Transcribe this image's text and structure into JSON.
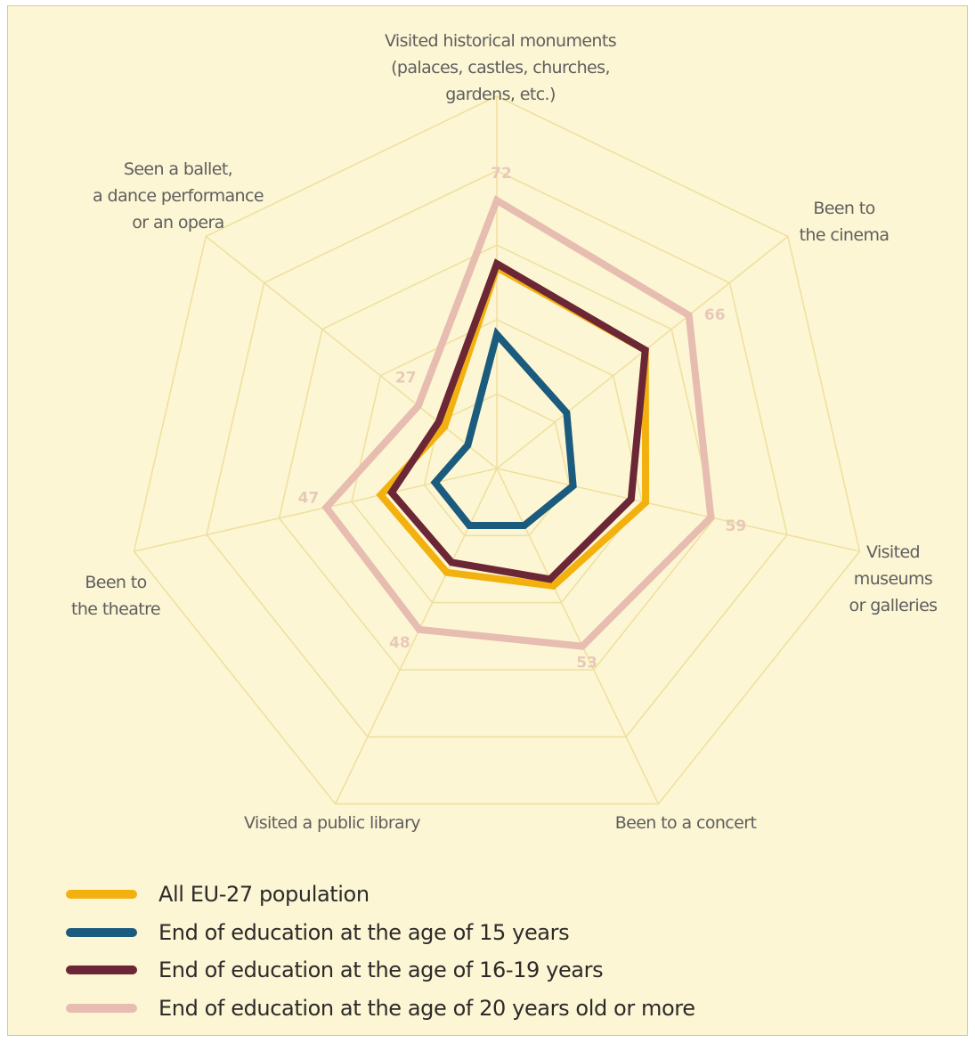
{
  "chart_data": {
    "type": "radar",
    "title": "",
    "axes": [
      {
        "label": [
          "Visited historical monuments",
          "(palaces, castles, churches,",
          "gardens, etc.)"
        ]
      },
      {
        "label": [
          "Been to",
          "the cinema"
        ]
      },
      {
        "label": [
          "Visited",
          "museums",
          "or galleries"
        ]
      },
      {
        "label": [
          "Been to a concert"
        ]
      },
      {
        "label": [
          "Visited a public library"
        ]
      },
      {
        "label": [
          "Been to",
          "the theatre"
        ]
      },
      {
        "label": [
          "Seen a ballet,",
          "a dance performance",
          "or an opera"
        ]
      }
    ],
    "rmax": 100,
    "gridlines": [
      20,
      40,
      60,
      80,
      100
    ],
    "series": [
      {
        "name": "All EU-27 population",
        "color": "#f3b10f",
        "values": [
          54,
          51,
          41,
          35,
          31,
          32,
          18
        ]
      },
      {
        "name": "End of education at the age of 15 years",
        "color": "#1a5b7e",
        "values": [
          36,
          24,
          21,
          17,
          17,
          17,
          10
        ]
      },
      {
        "name": "End of education at the age of 16-19 years",
        "color": "#6b2735",
        "values": [
          55,
          51,
          37,
          33,
          28,
          29,
          20
        ]
      },
      {
        "name": "End of education at the age of 20 years old or more",
        "color": "#e6bdb0",
        "values": [
          72,
          66,
          59,
          53,
          48,
          47,
          27
        ]
      }
    ],
    "value_labels": {
      "series_index": 3,
      "values": [
        "72",
        "66",
        "59",
        "53",
        "48",
        "47",
        "27"
      ]
    },
    "legend": "bottom"
  }
}
